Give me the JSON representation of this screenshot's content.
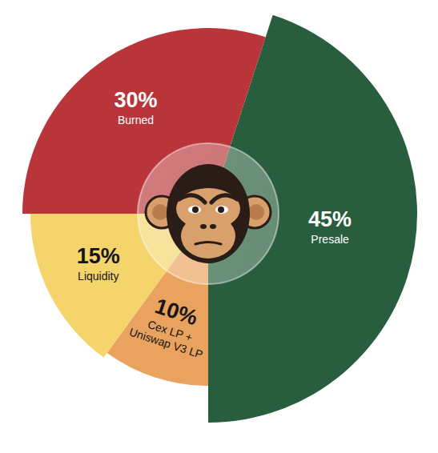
{
  "chart_data": {
    "type": "pie",
    "categories": [
      "Presale",
      "Cex LP + Uniswap V3 LP",
      "Liquidity",
      "Burned"
    ],
    "values": [
      45,
      10,
      15,
      30
    ],
    "value_labels": [
      "45%",
      "10%",
      "15%",
      "30%"
    ],
    "colors": [
      "#285e3d",
      "#eaa35f",
      "#f4d46b",
      "#b93539"
    ],
    "data_labels": true
  }
}
